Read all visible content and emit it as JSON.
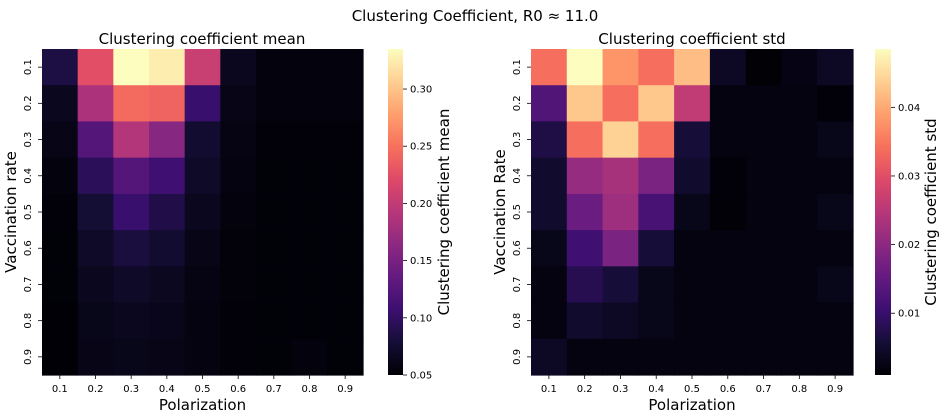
{
  "suptitle": "Clustering Coefficient, R0 ≈ 11.0",
  "colormap": "magma",
  "chart_data": [
    {
      "type": "heatmap",
      "title": "Clustering coefficient mean",
      "xlabel": "Polarization",
      "ylabel": "Vaccination rate",
      "colorbar_label": "Clustering coefficient mean",
      "x": [
        "0.1",
        "0.2",
        "0.3",
        "0.4",
        "0.5",
        "0.6",
        "0.7",
        "0.8",
        "0.9"
      ],
      "y": [
        "0.1",
        "0.2",
        "0.3",
        "0.4",
        "0.5",
        "0.6",
        "0.7",
        "0.8",
        "0.9"
      ],
      "vmin": 0.05,
      "vmax": 0.335,
      "colorbar_ticks": [
        "0.05",
        "0.10",
        "0.15",
        "0.20",
        "0.25",
        "0.30"
      ],
      "values": [
        [
          0.085,
          0.225,
          0.335,
          0.325,
          0.205,
          0.065,
          0.055,
          0.055,
          0.055
        ],
        [
          0.065,
          0.185,
          0.245,
          0.24,
          0.105,
          0.06,
          0.055,
          0.055,
          0.055
        ],
        [
          0.06,
          0.125,
          0.19,
          0.16,
          0.075,
          0.058,
          0.053,
          0.053,
          0.053
        ],
        [
          0.055,
          0.095,
          0.125,
          0.11,
          0.07,
          0.056,
          0.052,
          0.052,
          0.052
        ],
        [
          0.053,
          0.078,
          0.105,
          0.088,
          0.065,
          0.055,
          0.052,
          0.052,
          0.052
        ],
        [
          0.052,
          0.07,
          0.082,
          0.075,
          0.06,
          0.054,
          0.052,
          0.052,
          0.052
        ],
        [
          0.052,
          0.065,
          0.07,
          0.066,
          0.058,
          0.054,
          0.052,
          0.052,
          0.052
        ],
        [
          0.051,
          0.062,
          0.065,
          0.063,
          0.056,
          0.053,
          0.052,
          0.052,
          0.052
        ],
        [
          0.051,
          0.06,
          0.062,
          0.06,
          0.056,
          0.053,
          0.052,
          0.055,
          0.052
        ]
      ]
    },
    {
      "type": "heatmap",
      "title": "Clustering coefficient std",
      "xlabel": "Polarization",
      "ylabel": "Vaccination Rate",
      "colorbar_label": "Clustering coefficient std",
      "x": [
        "0.1",
        "0.2",
        "0.3",
        "0.4",
        "0.5",
        "0.6",
        "0.7",
        "0.8",
        "0.9"
      ],
      "y": [
        "0.1",
        "0.2",
        "0.3",
        "0.4",
        "0.5",
        "0.6",
        "0.7",
        "0.8",
        "0.9"
      ],
      "vmin": 0.001,
      "vmax": 0.0485,
      "colorbar_ticks": [
        "0.01",
        "0.02",
        "0.03",
        "0.04"
      ],
      "values": [
        [
          0.034,
          0.0485,
          0.038,
          0.034,
          0.042,
          0.004,
          0.0012,
          0.0025,
          0.004
        ],
        [
          0.013,
          0.043,
          0.034,
          0.043,
          0.026,
          0.002,
          0.002,
          0.002,
          0.0015
        ],
        [
          0.007,
          0.034,
          0.044,
          0.034,
          0.006,
          0.002,
          0.002,
          0.002,
          0.003
        ],
        [
          0.005,
          0.021,
          0.023,
          0.018,
          0.005,
          0.0015,
          0.002,
          0.002,
          0.002
        ],
        [
          0.005,
          0.016,
          0.022,
          0.012,
          0.003,
          0.0013,
          0.002,
          0.002,
          0.003
        ],
        [
          0.003,
          0.011,
          0.018,
          0.006,
          0.002,
          0.002,
          0.002,
          0.002,
          0.002
        ],
        [
          0.002,
          0.008,
          0.006,
          0.003,
          0.002,
          0.002,
          0.002,
          0.002,
          0.003
        ],
        [
          0.002,
          0.005,
          0.004,
          0.003,
          0.002,
          0.002,
          0.002,
          0.002,
          0.002
        ],
        [
          0.004,
          0.002,
          0.002,
          0.002,
          0.002,
          0.002,
          0.002,
          0.002,
          0.002
        ]
      ]
    }
  ]
}
